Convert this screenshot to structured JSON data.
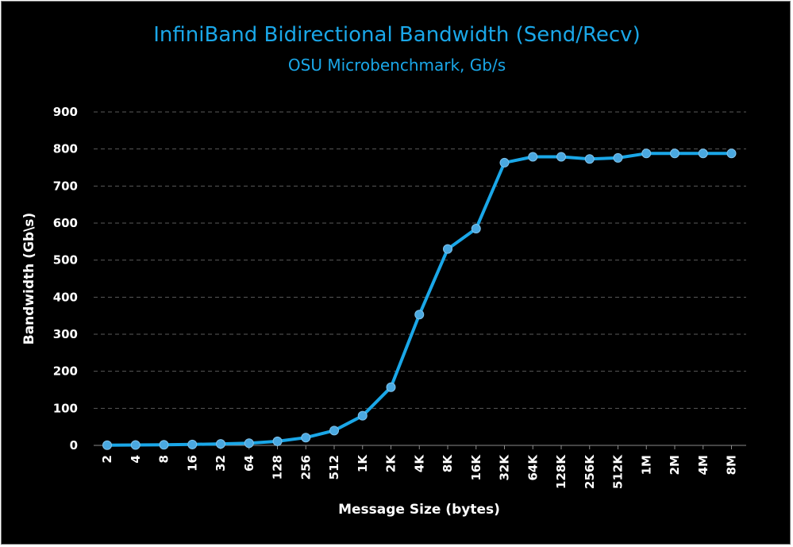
{
  "chart_data": {
    "type": "line",
    "title": "InfiniBand Bidirectional Bandwidth (Send/Recv)",
    "subtitle": "OSU Microbenchmark, Gb/s",
    "xlabel": "Message Size (bytes)",
    "ylabel": "Bandwidth (Gb\\s)",
    "ylim": [
      0,
      900
    ],
    "yticks": [
      "0",
      "100",
      "200",
      "300",
      "400",
      "500",
      "600",
      "700",
      "800",
      "900"
    ],
    "grid": true,
    "legend": "none",
    "categories": [
      "2",
      "4",
      "8",
      "16",
      "32",
      "64",
      "128",
      "256",
      "512",
      "1K",
      "2K",
      "4K",
      "8K",
      "16K",
      "32K",
      "64K",
      "128K",
      "256K",
      "512K",
      "1M",
      "2M",
      "4M",
      "8M"
    ],
    "series": [
      {
        "values": [
          0.5,
          1,
          1.5,
          2.5,
          4,
          6,
          11,
          21,
          40,
          80,
          157,
          353,
          530,
          585,
          763,
          779,
          779,
          773,
          776,
          788,
          788,
          788,
          788
        ]
      }
    ]
  },
  "colors": {
    "background": "#000000",
    "title": "#1aa7e8",
    "line": "#1aa7e8",
    "marker": "#4aa8e0",
    "gridline": "#5a5a5a",
    "text": "#ffffff"
  }
}
